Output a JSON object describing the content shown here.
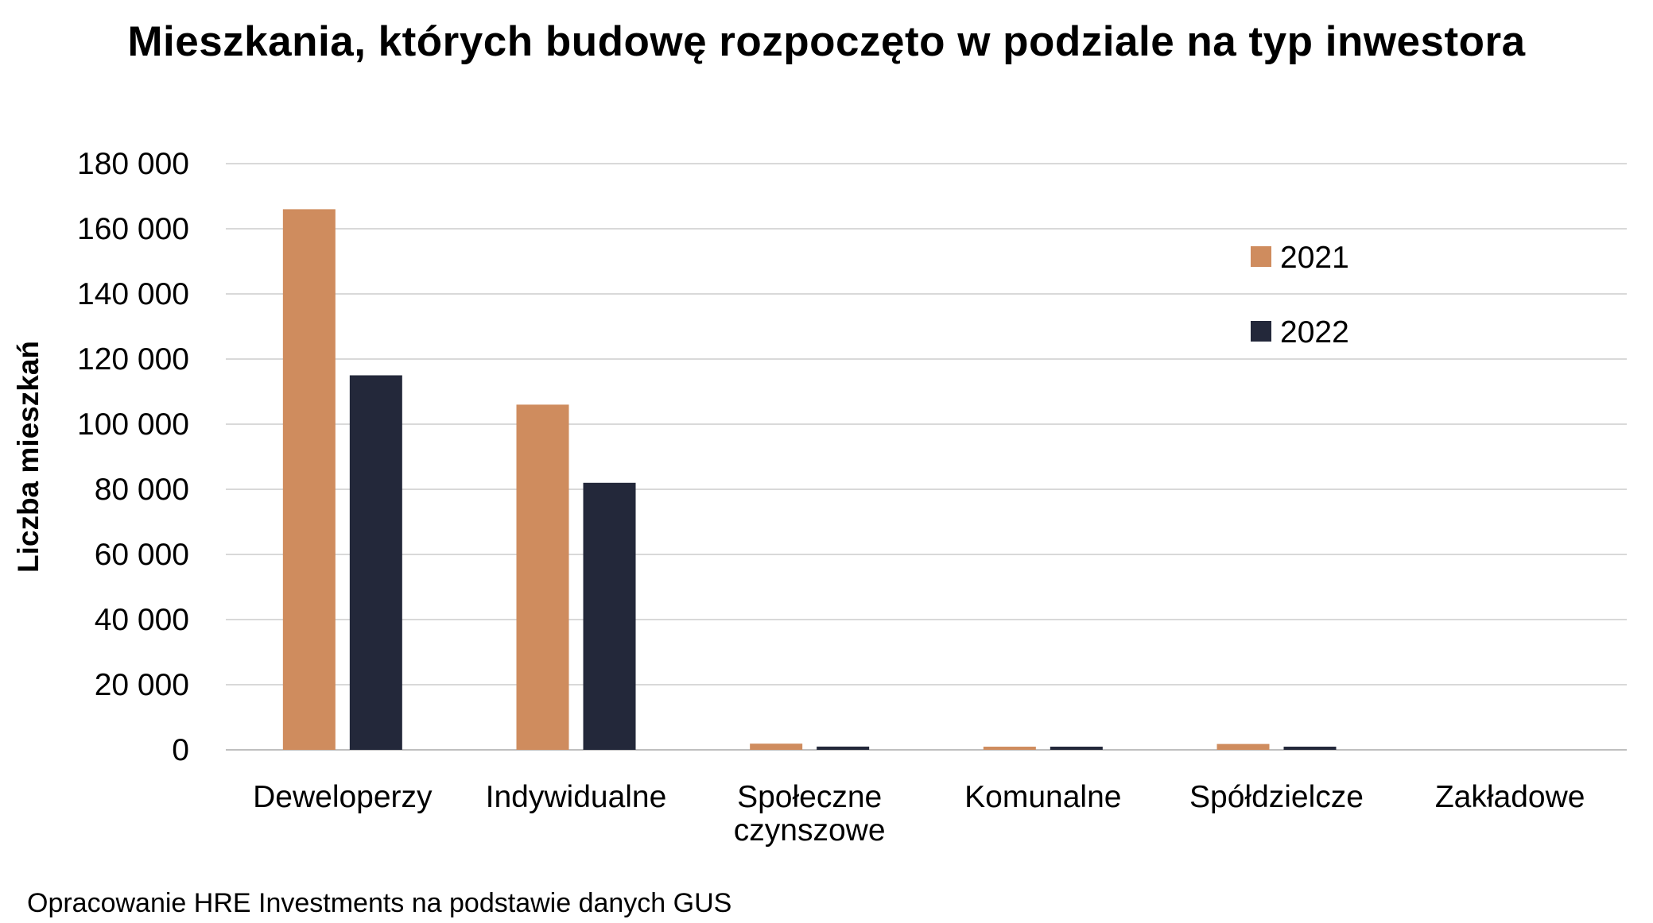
{
  "chart_data": {
    "type": "bar",
    "title": "Mieszkania, których budowę rozpoczęto w podziale na typ inwestora",
    "xlabel": "",
    "ylabel": "Liczba mieszkań",
    "categories": [
      [
        "Deweloperzy"
      ],
      [
        "Indywidualne"
      ],
      [
        "Społeczne",
        "czynszowe"
      ],
      [
        "Komunalne"
      ],
      [
        "Spółdzielcze"
      ],
      [
        "Zakładowe"
      ]
    ],
    "series": [
      {
        "name": "2021",
        "color": "#cf8c5e",
        "values": [
          166000,
          106000,
          1900,
          800,
          1800,
          0
        ]
      },
      {
        "name": "2022",
        "color": "#23283a",
        "values": [
          115000,
          82000,
          1000,
          500,
          600,
          0
        ]
      }
    ],
    "ylim": [
      0,
      180000
    ],
    "yticks": [
      0,
      20000,
      40000,
      60000,
      80000,
      100000,
      120000,
      140000,
      160000,
      180000
    ],
    "ytick_labels": [
      "0",
      "20 000",
      "40 000",
      "60 000",
      "80 000",
      "100 000",
      "120 000",
      "140 000",
      "160 000",
      "180 000"
    ],
    "grid": true,
    "legend_position": "top-right"
  },
  "source_note": "Opracowanie HRE Investments na podstawie danych GUS"
}
